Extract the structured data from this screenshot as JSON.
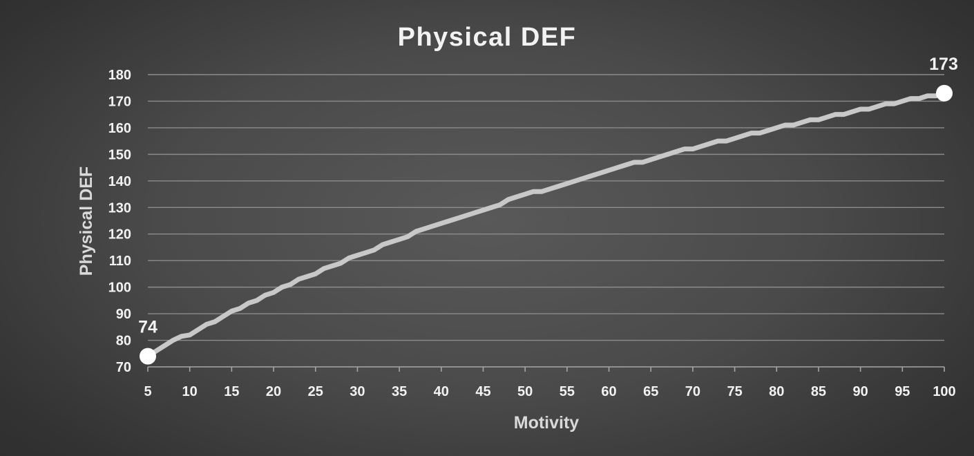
{
  "chart_data": {
    "type": "line",
    "title": "Physical DEF",
    "xlabel": "Motivity",
    "ylabel": "Physical DEF",
    "xlim": [
      5,
      100
    ],
    "ylim": [
      70,
      180
    ],
    "x_ticks": [
      5,
      10,
      15,
      20,
      25,
      30,
      35,
      40,
      45,
      50,
      55,
      60,
      65,
      70,
      75,
      80,
      85,
      90,
      95,
      100
    ],
    "y_ticks": [
      70,
      80,
      90,
      100,
      110,
      120,
      130,
      140,
      150,
      160,
      170,
      180
    ],
    "x_tick_labels": [
      "5",
      "10",
      "15",
      "20",
      "25",
      "30",
      "35",
      "40",
      "45",
      "50",
      "55",
      "60",
      "65",
      "70",
      "75",
      "80",
      "85",
      "90",
      "95",
      "100"
    ],
    "y_tick_labels": [
      "70",
      "80",
      "90",
      "100",
      "110",
      "120",
      "130",
      "140",
      "150",
      "160",
      "170",
      "180"
    ],
    "grid": true,
    "legend": false,
    "series": [
      {
        "color": "#c8c8c8",
        "x": [
          5,
          6,
          7,
          8,
          9,
          10,
          11,
          12,
          13,
          14,
          15,
          16,
          17,
          18,
          19,
          20,
          21,
          22,
          23,
          24,
          25,
          26,
          27,
          28,
          29,
          30,
          31,
          32,
          33,
          34,
          35,
          36,
          37,
          38,
          39,
          40,
          41,
          42,
          43,
          44,
          45,
          46,
          47,
          48,
          49,
          50,
          51,
          52,
          53,
          54,
          55,
          56,
          57,
          58,
          59,
          60,
          61,
          62,
          63,
          64,
          65,
          66,
          67,
          68,
          69,
          70,
          71,
          72,
          73,
          74,
          75,
          76,
          77,
          78,
          79,
          80,
          81,
          82,
          83,
          84,
          85,
          86,
          87,
          88,
          89,
          90,
          91,
          92,
          93,
          94,
          95,
          96,
          97,
          98,
          99,
          100
        ],
        "values": [
          74,
          76,
          78,
          80,
          81.5,
          82,
          84,
          86,
          87,
          89,
          91,
          92,
          94,
          95,
          97,
          98,
          100,
          101,
          103,
          104,
          105,
          107,
          108,
          109,
          111,
          112,
          113,
          114,
          116,
          117,
          118,
          119,
          121,
          122,
          123,
          124,
          125,
          126,
          127,
          128,
          129,
          130,
          131,
          133,
          134,
          135,
          136,
          136,
          137,
          138,
          139,
          140,
          141,
          142,
          143,
          144,
          145,
          146,
          147,
          147,
          148,
          149,
          150,
          151,
          152,
          152,
          153,
          154,
          155,
          155,
          156,
          157,
          158,
          158,
          159,
          160,
          161,
          161,
          162,
          163,
          163,
          164,
          165,
          165,
          166,
          167,
          167,
          168,
          169,
          169,
          170,
          171,
          171,
          172,
          172,
          173
        ]
      }
    ],
    "data_labels": [
      {
        "x": 5,
        "y": 74,
        "text": "74"
      },
      {
        "x": 100,
        "y": 173,
        "text": "173"
      }
    ]
  }
}
